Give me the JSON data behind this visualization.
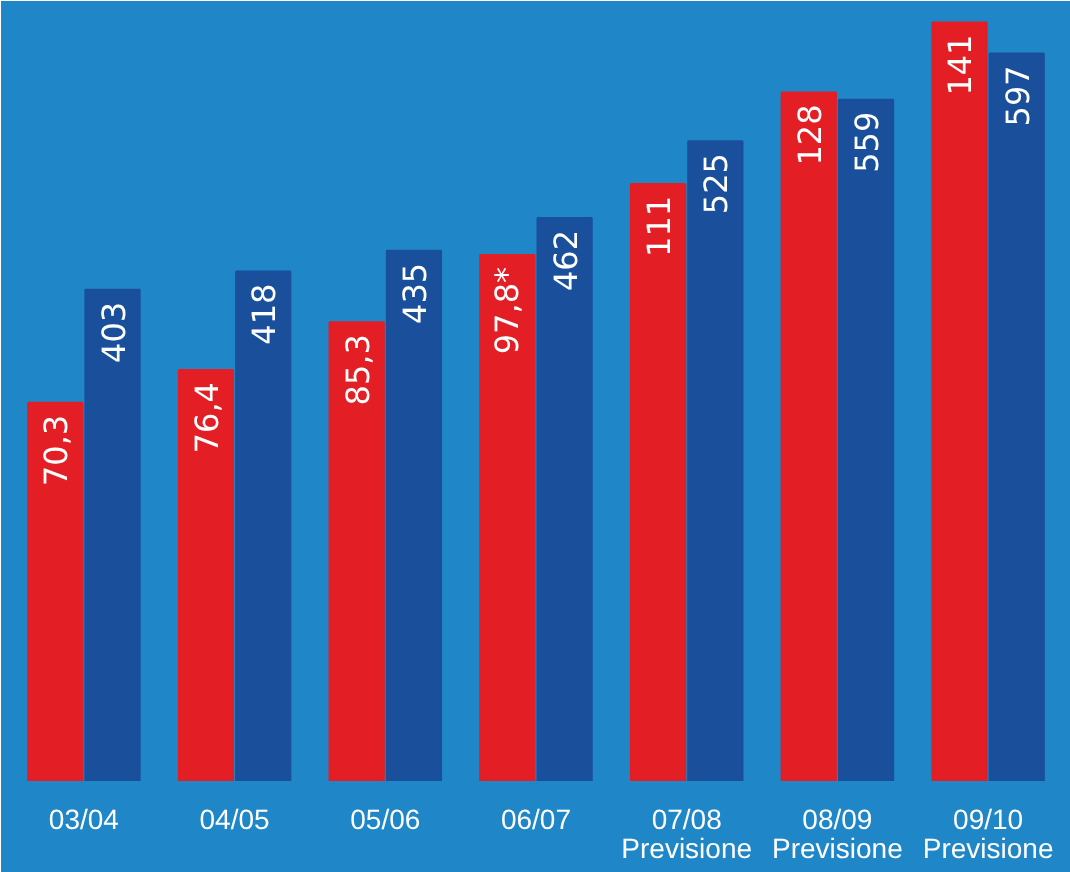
{
  "chart_data": {
    "type": "bar",
    "categories": [
      "03/04",
      "04/05",
      "05/06",
      "06/07",
      "07/08\nPrevisione",
      "08/09\nPrevisione",
      "09/10\nPrevisione"
    ],
    "series": [
      {
        "color": "#e31e24",
        "values": [
          70.3,
          76.4,
          85.3,
          97.8,
          111,
          128,
          141
        ],
        "value_labels": [
          "70,3",
          "76,4",
          "85,3",
          "97,8*",
          "111",
          "128",
          "141"
        ]
      },
      {
        "color": "#1a4f9c",
        "axis": "y2",
        "values": [
          403,
          418,
          435,
          462,
          525,
          559,
          597
        ],
        "value_labels": [
          "403",
          "418",
          "435",
          "462",
          "525",
          "559",
          "597"
        ]
      }
    ],
    "ylim": [
      0,
      145
    ],
    "y2lim": [
      0,
      640
    ],
    "tick_labels": false,
    "grid": false
  }
}
